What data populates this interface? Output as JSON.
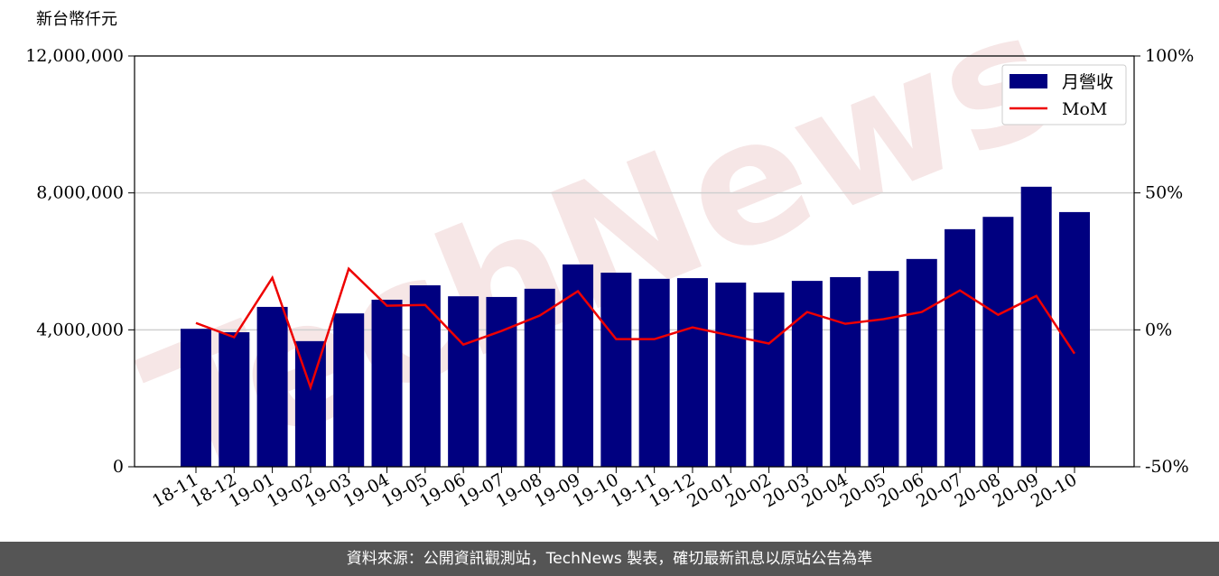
{
  "chart_data": {
    "type": "bar-line",
    "y_label": "新台幣仟元",
    "watermark": "TechNews",
    "categories": [
      "18-11",
      "18-12",
      "19-01",
      "19-02",
      "19-03",
      "19-04",
      "19-05",
      "19-06",
      "19-07",
      "19-08",
      "19-09",
      "19-10",
      "19-11",
      "19-12",
      "20-01",
      "20-02",
      "20-03",
      "20-04",
      "20-05",
      "20-06",
      "20-07",
      "20-08",
      "20-09",
      "20-10"
    ],
    "series": [
      {
        "name": "月營收",
        "color": "#000080",
        "type": "bar",
        "values": [
          4030000,
          3930000,
          4670000,
          3670000,
          4480000,
          4880000,
          5300000,
          4980000,
          4960000,
          5200000,
          5910000,
          5670000,
          5490000,
          5510000,
          5380000,
          5090000,
          5430000,
          5540000,
          5720000,
          6070000,
          6940000,
          7300000,
          8180000,
          7440000
        ]
      },
      {
        "name": "MoM",
        "color": "#ee0000",
        "type": "line",
        "axis": "y2",
        "values": [
          2.5,
          -2.7,
          19,
          -21,
          22.3,
          8.8,
          9.1,
          -5.4,
          -0.4,
          5.2,
          14.1,
          -3.4,
          -3.4,
          0.9,
          -2.1,
          -5.0,
          6.5,
          2.2,
          3.9,
          6.5,
          14.4,
          5.5,
          12.4,
          -8.7
        ]
      }
    ],
    "ylim": [
      0,
      12000000
    ],
    "yticks": [
      0,
      {
        "value": 4000000,
        "label": "4,000,000"
      },
      {
        "value": 8000000,
        "label": "8,000,000"
      },
      {
        "value": 12000000,
        "label": "12,000,000"
      }
    ],
    "y2lim": [
      -50,
      100
    ],
    "y2ticks": [
      {
        "value": -50,
        "label": "-50%"
      },
      {
        "value": 0,
        "label": "0%"
      },
      {
        "value": 50,
        "label": "50%"
      },
      {
        "value": 100,
        "label": "100%"
      }
    ],
    "grid": true,
    "legend": "upper right",
    "footer": "資料來源：公開資訊觀測站，TechNews 製表，確切最新訊息以原站公告為準"
  }
}
